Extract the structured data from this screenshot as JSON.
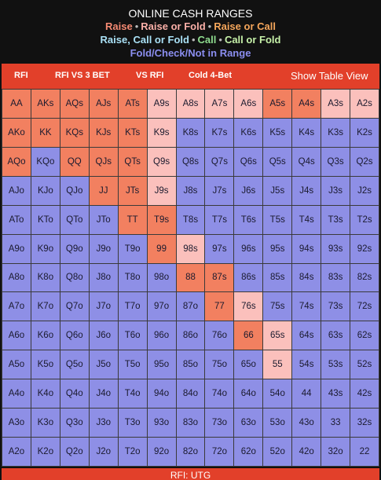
{
  "header": {
    "title": "ONLINE CASH RANGES",
    "legend_line1": [
      {
        "label": "Raise",
        "color": "#f58a73"
      },
      {
        "label": "Raise or Fold",
        "color": "#fbb0a8"
      },
      {
        "label": "Raise or Call",
        "color": "#f5a65b"
      }
    ],
    "legend_line2": [
      {
        "label": "Raise, Call or Fold",
        "color": "#a9e0f5"
      },
      {
        "label": "Call",
        "color": "#8fdc8f"
      },
      {
        "label": "Call or Fold",
        "color": "#c5f0a8"
      }
    ],
    "legend_line3": [
      {
        "label": "Fold/Check/Not in Range",
        "color": "#8b8ef0"
      }
    ]
  },
  "nav": {
    "tab_rfi": "RFI",
    "tab_rfi_vs_3bet": "RFI VS 3 BET",
    "tab_vs_rfi": "VS RFI",
    "tab_cold_4bet": "Cold 4-Bet",
    "show_table_view": "Show Table View"
  },
  "colors": {
    "raise": "#f28060",
    "raise_or_fold": "#fbc0bc",
    "not_in_range": "#8e8fe6",
    "nav_background": "#e2402a"
  },
  "grid": {
    "rows": [
      [
        "AA",
        "AKs",
        "AQs",
        "AJs",
        "ATs",
        "A9s",
        "A8s",
        "A7s",
        "A6s",
        "A5s",
        "A4s",
        "A3s",
        "A2s"
      ],
      [
        "AKo",
        "KK",
        "KQs",
        "KJs",
        "KTs",
        "K9s",
        "K8s",
        "K7s",
        "K6s",
        "K5s",
        "K4s",
        "K3s",
        "K2s"
      ],
      [
        "AQo",
        "KQo",
        "QQ",
        "QJs",
        "QTs",
        "Q9s",
        "Q8s",
        "Q7s",
        "Q6s",
        "Q5s",
        "Q4s",
        "Q3s",
        "Q2s"
      ],
      [
        "AJo",
        "KJo",
        "QJo",
        "JJ",
        "JTs",
        "J9s",
        "J8s",
        "J7s",
        "J6s",
        "J5s",
        "J4s",
        "J3s",
        "J2s"
      ],
      [
        "ATo",
        "KTo",
        "QTo",
        "JTo",
        "TT",
        "T9s",
        "T8s",
        "T7s",
        "T6s",
        "T5s",
        "T4s",
        "T3s",
        "T2s"
      ],
      [
        "A9o",
        "K9o",
        "Q9o",
        "J9o",
        "T9o",
        "99",
        "98s",
        "97s",
        "96s",
        "95s",
        "94s",
        "93s",
        "92s"
      ],
      [
        "A8o",
        "K8o",
        "Q8o",
        "J8o",
        "T8o",
        "98o",
        "88",
        "87s",
        "86s",
        "85s",
        "84s",
        "83s",
        "82s"
      ],
      [
        "A7o",
        "K7o",
        "Q7o",
        "J7o",
        "T7o",
        "97o",
        "87o",
        "77",
        "76s",
        "75s",
        "74s",
        "73s",
        "72s"
      ],
      [
        "A6o",
        "K6o",
        "Q6o",
        "J6o",
        "T6o",
        "96o",
        "86o",
        "76o",
        "66",
        "65s",
        "64s",
        "63s",
        "62s"
      ],
      [
        "A5o",
        "K5o",
        "Q5o",
        "J5o",
        "T5o",
        "95o",
        "85o",
        "75o",
        "65o",
        "55",
        "54s",
        "53s",
        "52s"
      ],
      [
        "A4o",
        "K4o",
        "Q4o",
        "J4o",
        "T4o",
        "94o",
        "84o",
        "74o",
        "64o",
        "54o",
        "44",
        "43s",
        "42s"
      ],
      [
        "A3o",
        "K3o",
        "Q3o",
        "J3o",
        "T3o",
        "93o",
        "83o",
        "73o",
        "63o",
        "53o",
        "43o",
        "33",
        "32s"
      ],
      [
        "A2o",
        "K2o",
        "Q2o",
        "J2o",
        "T2o",
        "92o",
        "82o",
        "72o",
        "62o",
        "52o",
        "42o",
        "32o",
        "22"
      ]
    ],
    "actions": [
      [
        "R",
        "R",
        "R",
        "R",
        "R",
        "RF",
        "RF",
        "RF",
        "RF",
        "R",
        "R",
        "RF",
        "RF"
      ],
      [
        "R",
        "R",
        "R",
        "R",
        "R",
        "RF",
        "N",
        "N",
        "N",
        "N",
        "N",
        "N",
        "N"
      ],
      [
        "R",
        "N",
        "R",
        "R",
        "R",
        "RF",
        "N",
        "N",
        "N",
        "N",
        "N",
        "N",
        "N"
      ],
      [
        "N",
        "N",
        "N",
        "R",
        "R",
        "RF",
        "N",
        "N",
        "N",
        "N",
        "N",
        "N",
        "N"
      ],
      [
        "N",
        "N",
        "N",
        "N",
        "R",
        "R",
        "N",
        "N",
        "N",
        "N",
        "N",
        "N",
        "N"
      ],
      [
        "N",
        "N",
        "N",
        "N",
        "N",
        "R",
        "RF",
        "N",
        "N",
        "N",
        "N",
        "N",
        "N"
      ],
      [
        "N",
        "N",
        "N",
        "N",
        "N",
        "N",
        "R",
        "R",
        "N",
        "N",
        "N",
        "N",
        "N"
      ],
      [
        "N",
        "N",
        "N",
        "N",
        "N",
        "N",
        "N",
        "R",
        "RF",
        "N",
        "N",
        "N",
        "N"
      ],
      [
        "N",
        "N",
        "N",
        "N",
        "N",
        "N",
        "N",
        "N",
        "R",
        "RF",
        "N",
        "N",
        "N"
      ],
      [
        "N",
        "N",
        "N",
        "N",
        "N",
        "N",
        "N",
        "N",
        "N",
        "RF",
        "N",
        "N",
        "N"
      ],
      [
        "N",
        "N",
        "N",
        "N",
        "N",
        "N",
        "N",
        "N",
        "N",
        "N",
        "N",
        "N",
        "N"
      ],
      [
        "N",
        "N",
        "N",
        "N",
        "N",
        "N",
        "N",
        "N",
        "N",
        "N",
        "N",
        "N",
        "N"
      ],
      [
        "N",
        "N",
        "N",
        "N",
        "N",
        "N",
        "N",
        "N",
        "N",
        "N",
        "N",
        "N",
        "N"
      ]
    ]
  },
  "footer": {
    "label": "RFI: UTG"
  }
}
